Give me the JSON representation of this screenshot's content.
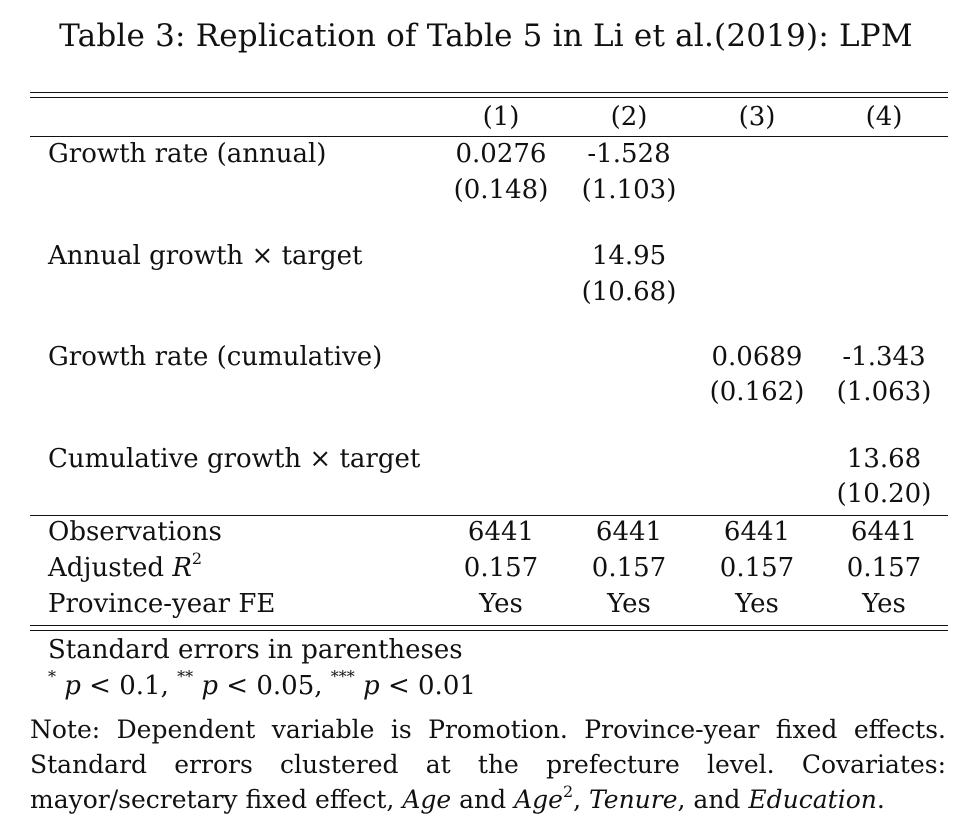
{
  "title": "Table 3: Replication of Table 5 in Li et al.(2019): LPM",
  "columns": [
    "(1)",
    "(2)",
    "(3)",
    "(4)"
  ],
  "rows": [
    {
      "label": "Growth rate (annual)",
      "coef": [
        "0.0276",
        "-1.528",
        "",
        ""
      ],
      "se": [
        "(0.148)",
        "(1.103)",
        "",
        ""
      ]
    },
    {
      "label": "Annual growth × target",
      "coef": [
        "",
        "14.95",
        "",
        ""
      ],
      "se": [
        "",
        "(10.68)",
        "",
        ""
      ]
    },
    {
      "label": "Growth rate (cumulative)",
      "coef": [
        "",
        "",
        "0.0689",
        "-1.343"
      ],
      "se": [
        "",
        "",
        "(0.162)",
        "(1.063)"
      ]
    },
    {
      "label": "Cumulative growth × target",
      "coef": [
        "",
        "",
        "",
        "13.68"
      ],
      "se": [
        "",
        "",
        "",
        "(10.20)"
      ]
    }
  ],
  "stats": [
    {
      "label": "Observations",
      "values": [
        "6441",
        "6441",
        "6441",
        "6441"
      ]
    },
    {
      "label_prefix": "Adjusted ",
      "label_var": "R",
      "label_sup": "2",
      "values": [
        "0.157",
        "0.157",
        "0.157",
        "0.157"
      ]
    },
    {
      "label": "Province-year FE",
      "values": [
        "Yes",
        "Yes",
        "Yes",
        "Yes"
      ]
    }
  ],
  "footnotes": {
    "se_note": "Standard errors in parentheses",
    "sig": {
      "s1": "*",
      "p1": "p",
      "v1": " < 0.1, ",
      "s2": "**",
      "p2": "p",
      "v2": " < 0.05, ",
      "s3": "***",
      "p3": "p",
      "v3": " < 0.01"
    }
  },
  "note": {
    "part1": "Note:  Dependent variable is Promotion.  Province-year fixed effects.  Standard errors clustered at the prefecture level.  Covariates: mayor/secretary fixed effect, ",
    "age": "Age",
    "and1": " and ",
    "age2": "Age",
    "age2_sup": "2",
    "comma": ", ",
    "tenure": "Tenure",
    "and2": ", and ",
    "education": "Education",
    "end": "."
  }
}
